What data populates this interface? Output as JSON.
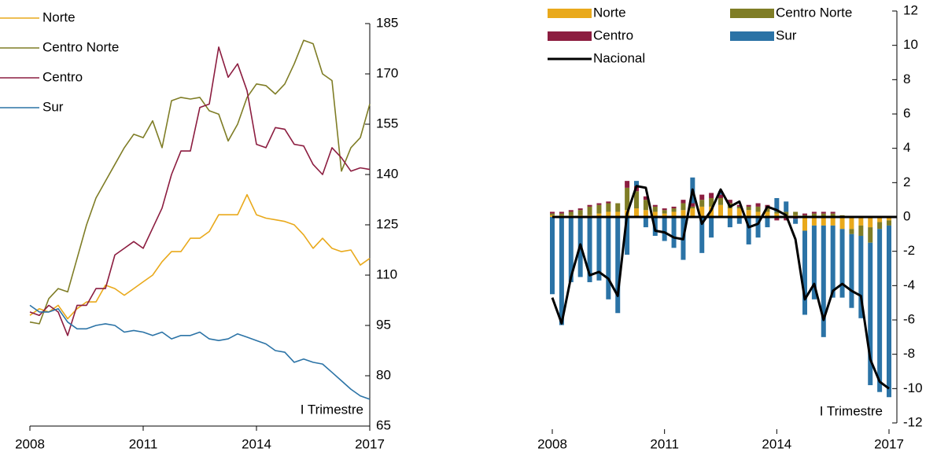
{
  "chart_data": [
    {
      "type": "line",
      "annotation": "I Trimestre",
      "x": [
        2008,
        2008.25,
        2008.5,
        2008.75,
        2009,
        2009.25,
        2009.5,
        2009.75,
        2010,
        2010.25,
        2010.5,
        2010.75,
        2011,
        2011.25,
        2011.5,
        2011.75,
        2012,
        2012.25,
        2012.5,
        2012.75,
        2013,
        2013.25,
        2013.5,
        2013.75,
        2014,
        2014.25,
        2014.5,
        2014.75,
        2015,
        2015.25,
        2015.5,
        2015.75,
        2016,
        2016.25,
        2016.5,
        2016.75,
        2017
      ],
      "xlim": [
        2008,
        2017
      ],
      "xticks": [
        2008,
        2011,
        2014,
        2017
      ],
      "ylim": [
        65,
        185
      ],
      "yticks": [
        65,
        80,
        95,
        110,
        125,
        140,
        155,
        170,
        185
      ],
      "series": [
        {
          "name": "Norte",
          "color": "#e9a91b",
          "values": [
            98,
            100,
            99,
            101,
            97,
            100,
            102,
            102,
            107,
            106,
            104,
            106,
            108,
            110,
            114,
            117,
            117,
            121,
            121,
            123,
            128,
            128,
            128,
            134,
            128,
            127,
            126.5,
            126,
            125,
            122,
            118,
            121,
            118,
            117,
            117.5,
            113,
            115
          ]
        },
        {
          "name": "Centro Norte",
          "color": "#7f7d26",
          "values": [
            96,
            95.5,
            103,
            106,
            105,
            115,
            125,
            133,
            138,
            143,
            148,
            152,
            151,
            156,
            148,
            162,
            163,
            162.5,
            163,
            159,
            158,
            150,
            155,
            163,
            167,
            166.5,
            164,
            167,
            173,
            180,
            179,
            170,
            168,
            141,
            148,
            151,
            161
          ]
        },
        {
          "name": "Centro",
          "color": "#8c1d40",
          "values": [
            99,
            98,
            101,
            99,
            92,
            101,
            101,
            106,
            106,
            116,
            118,
            120,
            118,
            124,
            130,
            140,
            147,
            147,
            160,
            161,
            178,
            169,
            173,
            165,
            149,
            148,
            154,
            153.5,
            149,
            148.5,
            143,
            140,
            148,
            145,
            141,
            142,
            141.5
          ]
        },
        {
          "name": "Sur",
          "color": "#2b73a6",
          "values": [
            101,
            99,
            99,
            100,
            96,
            94,
            94,
            95,
            95.5,
            95,
            93,
            93.5,
            93,
            92,
            93,
            91,
            92,
            92,
            93,
            91,
            90.5,
            91,
            92.5,
            91.5,
            90.5,
            89.5,
            87.5,
            87,
            84,
            85,
            84,
            83.5,
            81,
            78.5,
            76,
            74,
            73
          ]
        }
      ]
    },
    {
      "type": "bar",
      "stacked": true,
      "annotation": "I Trimestre",
      "x": [
        2008,
        2008.25,
        2008.5,
        2008.75,
        2009,
        2009.25,
        2009.5,
        2009.75,
        2010,
        2010.25,
        2010.5,
        2010.75,
        2011,
        2011.25,
        2011.5,
        2011.75,
        2012,
        2012.25,
        2012.5,
        2012.75,
        2013,
        2013.25,
        2013.5,
        2013.75,
        2014,
        2014.25,
        2014.5,
        2014.75,
        2015,
        2015.25,
        2015.5,
        2015.75,
        2016,
        2016.25,
        2016.5,
        2016.75,
        2017
      ],
      "xlim": [
        2008,
        2017
      ],
      "xticks": [
        2008,
        2011,
        2014,
        2017
      ],
      "ylim": [
        -12,
        12
      ],
      "yticks": [
        -12,
        -10,
        -8,
        -6,
        -4,
        -2,
        0,
        2,
        4,
        6,
        8,
        10,
        12
      ],
      "series": [
        {
          "name": "Norte",
          "color": "#e9a91b",
          "values": [
            0.1,
            0.1,
            0.1,
            0.1,
            0.1,
            0.2,
            0.3,
            0.3,
            0.4,
            0.5,
            0.4,
            0.3,
            0.2,
            0.3,
            0.4,
            0.5,
            0.6,
            0.6,
            0.7,
            0.5,
            0.5,
            0.4,
            0.3,
            0.3,
            0.2,
            0.1,
            0.1,
            -0.8,
            -0.5,
            -0.5,
            -0.5,
            -0.7,
            -0.7,
            -0.5,
            -0.6,
            -0.3,
            -0.2
          ]
        },
        {
          "name": "Centro Norte",
          "color": "#7f7d26",
          "values": [
            0.1,
            0.1,
            0.2,
            0.3,
            0.5,
            0.5,
            0.5,
            0.5,
            1.3,
            1.0,
            0.6,
            0.3,
            0.2,
            0.2,
            0.4,
            0.1,
            0.4,
            0.5,
            0.4,
            0.3,
            0.1,
            0.2,
            0.3,
            0.2,
            0.1,
            0.2,
            0.2,
            0.1,
            0.2,
            0.2,
            0.2,
            0.1,
            -0.3,
            -0.6,
            -0.9,
            -0.4,
            -0.3
          ]
        },
        {
          "name": "Centro",
          "color": "#8c1d40",
          "values": [
            0.1,
            0.1,
            0.1,
            0.1,
            0.1,
            0.1,
            0.1,
            0,
            0.4,
            0.3,
            0.2,
            0.1,
            0.1,
            0.1,
            0.2,
            0.2,
            0.3,
            0.3,
            0.2,
            0.2,
            0.1,
            0.1,
            0.2,
            0.2,
            -0.2,
            -0.2,
            -0.1,
            0.1,
            0.1,
            0.1,
            0.1,
            0,
            0,
            0,
            0,
            0,
            0
          ]
        },
        {
          "name": "Sur",
          "color": "#2b73a6",
          "values": [
            -4.5,
            -6.3,
            -3.8,
            -3.5,
            -3.8,
            -3.7,
            -4.8,
            -5.6,
            -2.2,
            0.3,
            -0.6,
            -1.1,
            -1.4,
            -1.8,
            -2.5,
            1.5,
            -2.1,
            -1.2,
            0.2,
            -0.6,
            -0.4,
            -1.6,
            -1.2,
            -0.6,
            0.8,
            0.6,
            -0.3,
            -4.9,
            -4.3,
            -6.5,
            -4.2,
            -4.0,
            -4.3,
            -4.8,
            -8.3,
            -9.5,
            -10.0
          ]
        },
        {
          "name": "Nacional",
          "type": "line",
          "color": "#000000",
          "values": [
            -4.7,
            -6.2,
            -3.5,
            -1.6,
            -3.4,
            -3.2,
            -3.6,
            -4.6,
            0.2,
            1.8,
            1.7,
            -0.8,
            -0.9,
            -1.2,
            -1.3,
            1.6,
            -0.4,
            0.4,
            1.6,
            0.6,
            0.9,
            -0.6,
            -0.4,
            0.6,
            0.4,
            0.1,
            -1.3,
            -4.8,
            -3.9,
            -6.0,
            -4.3,
            -3.9,
            -4.3,
            -4.6,
            -8.3,
            -9.6,
            -10.0
          ]
        }
      ]
    }
  ]
}
